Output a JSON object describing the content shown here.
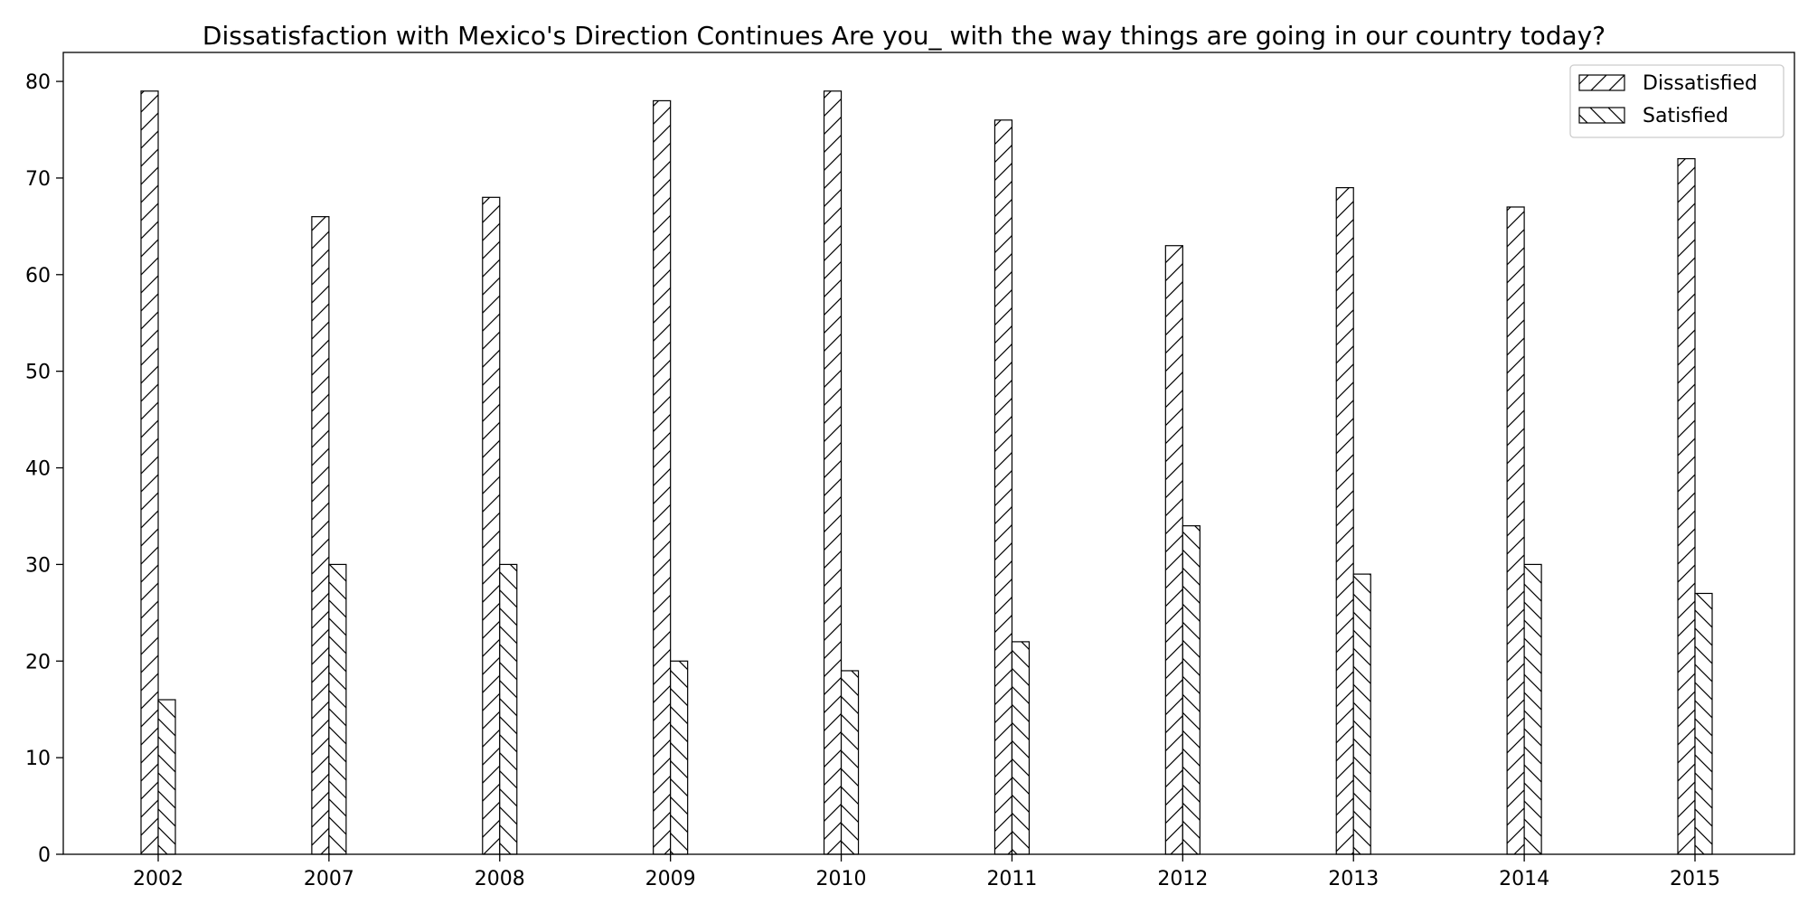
{
  "chart_data": {
    "type": "bar",
    "title": "Dissatisfaction with Mexico's Direction Continues Are you_ with the way things are going in our country today?",
    "xlabel": "",
    "ylabel": "",
    "categories": [
      "2002",
      "2007",
      "2008",
      "2009",
      "2010",
      "2011",
      "2012",
      "2013",
      "2014",
      "2015"
    ],
    "series": [
      {
        "name": "Dissatisfied",
        "values": [
          79,
          66,
          68,
          78,
          79,
          76,
          63,
          69,
          67,
          72
        ],
        "hatch": "forward-slash"
      },
      {
        "name": "Satisfied",
        "values": [
          16,
          30,
          30,
          20,
          19,
          22,
          34,
          29,
          30,
          27
        ],
        "hatch": "back-slash"
      }
    ],
    "ylim": [
      0,
      83
    ],
    "yticks": [
      0,
      10,
      20,
      30,
      40,
      50,
      60,
      70,
      80
    ],
    "grid": false,
    "legend_position": "top-right",
    "colors": {
      "bar_fill": "#ffffff",
      "bar_edge": "#000000"
    }
  }
}
